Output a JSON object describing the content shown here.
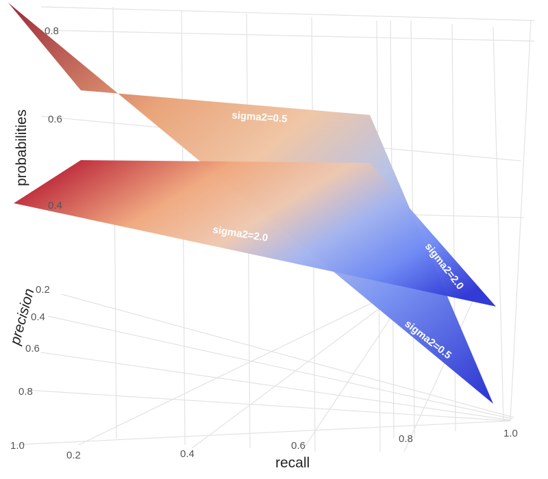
{
  "chart_data": {
    "type": "surface3d",
    "title": "",
    "axes": {
      "x": {
        "label": "recall",
        "ticks": [
          0.2,
          0.4,
          0.6,
          0.8,
          1.0
        ],
        "tick_labels": [
          "0.2",
          "0.4",
          "0.6",
          "0.8",
          "1.0"
        ],
        "range": [
          0.1,
          1.0
        ]
      },
      "y": {
        "label": "precision",
        "ticks": [
          0.2,
          0.4,
          0.6,
          0.8,
          1.0
        ],
        "tick_labels": [
          "0.2",
          "0.4",
          "0.6",
          "0.8",
          "1.0"
        ],
        "range": [
          0.2,
          1.0
        ]
      },
      "z": {
        "label": "probabilities",
        "ticks": [
          0.4,
          0.6,
          0.8
        ],
        "tick_labels": [
          "0.4",
          "0.6",
          "0.8"
        ],
        "range": [
          0.3,
          0.85
        ]
      }
    },
    "grid": true,
    "colorscale": {
      "low": "#3b3fd8",
      "mid": "#d8d4cc",
      "high": "#c0303c"
    },
    "series": [
      {
        "name": "sigma2=0.5",
        "corner_values": {
          "r0p0": 0.85,
          "r1p0": 0.6,
          "r0p1": 0.62,
          "r1p1": 0.25
        }
      },
      {
        "name": "sigma2=2.0",
        "corner_values": {
          "r0p0": 0.48,
          "r1p0": 0.5,
          "r0p1": 0.4,
          "r1p1": 0.3
        }
      }
    ],
    "annotations": [
      {
        "text": "sigma2=0.5",
        "series": "sigma2=0.5",
        "edge": "top"
      },
      {
        "text": "sigma2=2.0",
        "series": "sigma2=2.0",
        "edge": "front"
      },
      {
        "text": "sigma2=2.0",
        "series": "sigma2=2.0",
        "edge": "right"
      },
      {
        "text": "sigma2=0.5",
        "series": "sigma2=0.5",
        "edge": "right"
      }
    ]
  }
}
